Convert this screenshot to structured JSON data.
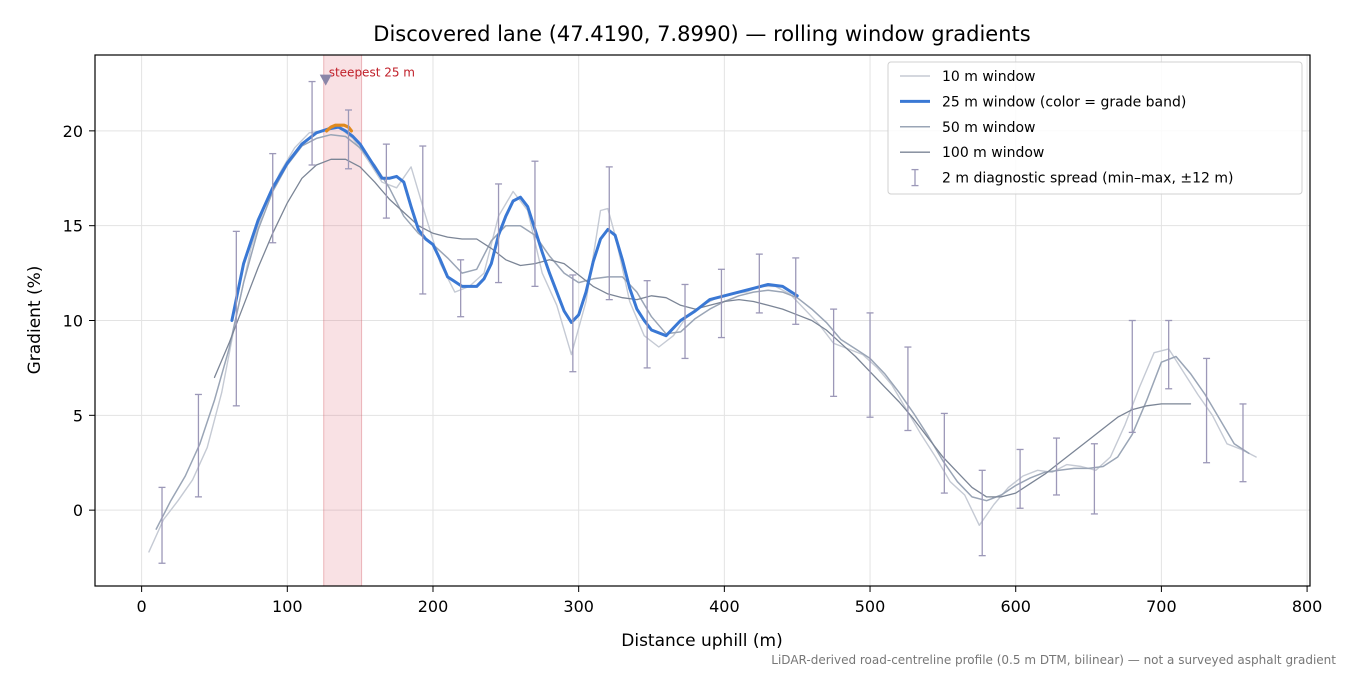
{
  "chart_data": {
    "type": "line",
    "title": "Discovered lane (47.4190, 7.8990) — rolling window gradients",
    "xlabel": "Distance uphill (m)",
    "ylabel": "Gradient (%)",
    "xlim": [
      -32,
      802
    ],
    "ylim": [
      -4,
      24
    ],
    "x_ticks": [
      0,
      100,
      200,
      300,
      400,
      500,
      600,
      700,
      800
    ],
    "y_ticks": [
      0,
      5,
      10,
      15,
      20
    ],
    "grid": true,
    "legend_position": "top-right",
    "annotation": "steepest 25 m",
    "highlight_band": [
      125,
      151
    ],
    "footnote": "LiDAR-derived road-centreline profile (0.5 m DTM, bilinear) — not a surveyed asphalt gradient",
    "series": [
      {
        "name": "10 m window",
        "color": "#c5cad4",
        "x": [
          5,
          15,
          25,
          35,
          45,
          55,
          65,
          75,
          85,
          95,
          105,
          115,
          125,
          135,
          145,
          155,
          165,
          175,
          185,
          195,
          205,
          215,
          225,
          235,
          245,
          255,
          265,
          275,
          285,
          295,
          305,
          315,
          320,
          325,
          335,
          345,
          355,
          365,
          375,
          385,
          395,
          405,
          415,
          425,
          435,
          445,
          455,
          465,
          475,
          485,
          495,
          505,
          515,
          525,
          535,
          545,
          555,
          565,
          575,
          585,
          595,
          605,
          615,
          625,
          635,
          645,
          655,
          665,
          675,
          685,
          695,
          705,
          715,
          725,
          735,
          745,
          755,
          765
        ],
        "values": [
          -2.2,
          -0.5,
          0.5,
          1.6,
          3.3,
          6.2,
          10.2,
          13.8,
          16.1,
          17.8,
          19.1,
          19.9,
          20.0,
          20.2,
          19.6,
          18.5,
          17.3,
          17.0,
          18.1,
          15.5,
          13.0,
          11.5,
          11.8,
          12.5,
          15.5,
          16.8,
          15.8,
          12.5,
          10.8,
          8.2,
          11.0,
          15.8,
          15.9,
          14.5,
          11.0,
          9.2,
          8.6,
          9.2,
          10.3,
          10.8,
          11.2,
          11.4,
          11.5,
          11.8,
          11.8,
          11.4,
          10.6,
          9.8,
          8.8,
          8.5,
          8.2,
          7.5,
          6.6,
          5.3,
          4.0,
          2.8,
          1.5,
          0.8,
          -0.8,
          0.3,
          1.2,
          1.8,
          2.1,
          2.0,
          2.4,
          2.3,
          2.1,
          2.8,
          4.5,
          6.5,
          8.3,
          8.5,
          7.3,
          6.1,
          5.0,
          3.5,
          3.2,
          2.8
        ]
      },
      {
        "name": "25 m window (color = grade band)",
        "color": "#3a78d4",
        "x": [
          62,
          70,
          80,
          90,
          100,
          110,
          120,
          128,
          135,
          140,
          145,
          150,
          155,
          160,
          165,
          170,
          175,
          180,
          185,
          190,
          195,
          200,
          205,
          210,
          220,
          230,
          235,
          240,
          245,
          250,
          255,
          260,
          265,
          270,
          275,
          280,
          285,
          290,
          295,
          300,
          305,
          310,
          315,
          320,
          325,
          330,
          335,
          340,
          345,
          350,
          360,
          370,
          380,
          390,
          400,
          410,
          420,
          430,
          440,
          450
        ],
        "values": [
          10.0,
          13.0,
          15.3,
          17.0,
          18.3,
          19.3,
          19.9,
          20.1,
          20.2,
          20.0,
          19.7,
          19.3,
          18.7,
          18.1,
          17.5,
          17.5,
          17.6,
          17.3,
          16.0,
          14.8,
          14.3,
          14.0,
          13.2,
          12.3,
          11.8,
          11.8,
          12.2,
          13.0,
          14.5,
          15.5,
          16.3,
          16.5,
          16.0,
          14.8,
          13.6,
          12.5,
          11.5,
          10.5,
          9.9,
          10.3,
          11.5,
          13.1,
          14.3,
          14.8,
          14.5,
          13.2,
          11.7,
          10.6,
          10.0,
          9.5,
          9.2,
          10.0,
          10.5,
          11.1,
          11.3,
          11.5,
          11.7,
          11.9,
          11.8,
          11.3
        ]
      },
      {
        "name": "25 m window steepest segment",
        "color": "#e08a1e",
        "x": [
          127,
          130,
          133,
          136,
          139,
          142,
          144
        ],
        "values": [
          20.0,
          20.2,
          20.3,
          20.3,
          20.3,
          20.2,
          20.0
        ]
      },
      {
        "name": "50 m window",
        "color": "#9aa5b6",
        "x": [
          10,
          20,
          30,
          40,
          50,
          60,
          70,
          80,
          90,
          100,
          110,
          120,
          130,
          140,
          150,
          160,
          170,
          180,
          190,
          200,
          210,
          220,
          230,
          240,
          250,
          260,
          270,
          280,
          290,
          300,
          310,
          320,
          330,
          340,
          350,
          360,
          370,
          380,
          390,
          400,
          410,
          420,
          430,
          440,
          450,
          460,
          470,
          480,
          490,
          500,
          510,
          520,
          530,
          540,
          550,
          560,
          570,
          580,
          590,
          600,
          610,
          620,
          630,
          640,
          650,
          660,
          670,
          680,
          690,
          700,
          710,
          720,
          730,
          740,
          750,
          760
        ],
        "values": [
          -1.0,
          0.5,
          1.8,
          3.5,
          5.8,
          8.5,
          12.0,
          14.8,
          16.8,
          18.2,
          19.2,
          19.6,
          19.8,
          19.7,
          19.1,
          18.2,
          17.0,
          15.5,
          14.6,
          14.0,
          13.3,
          12.5,
          12.7,
          14.2,
          15.0,
          15.0,
          14.5,
          13.4,
          12.5,
          12.0,
          12.2,
          12.3,
          12.3,
          11.5,
          10.2,
          9.3,
          9.4,
          10.1,
          10.6,
          11.0,
          11.3,
          11.5,
          11.6,
          11.5,
          11.2,
          10.6,
          9.9,
          9.0,
          8.5,
          8.0,
          7.2,
          6.2,
          5.1,
          3.9,
          2.6,
          1.5,
          0.7,
          0.5,
          0.8,
          1.3,
          1.7,
          2.0,
          2.1,
          2.2,
          2.2,
          2.3,
          2.8,
          4.0,
          5.8,
          7.8,
          8.1,
          7.2,
          6.1,
          4.8,
          3.5,
          3.0
        ]
      },
      {
        "name": "100 m window",
        "color": "#7b8596",
        "x": [
          50,
          60,
          70,
          80,
          90,
          100,
          110,
          120,
          130,
          140,
          150,
          160,
          170,
          180,
          190,
          200,
          210,
          220,
          230,
          240,
          250,
          260,
          270,
          280,
          290,
          300,
          310,
          320,
          330,
          340,
          350,
          360,
          370,
          380,
          390,
          400,
          410,
          420,
          430,
          440,
          450,
          460,
          470,
          480,
          490,
          500,
          510,
          520,
          530,
          540,
          550,
          560,
          570,
          580,
          590,
          600,
          610,
          620,
          630,
          640,
          650,
          660,
          670,
          680,
          690,
          700,
          710,
          720
        ],
        "values": [
          7.0,
          8.8,
          10.8,
          12.8,
          14.6,
          16.2,
          17.5,
          18.2,
          18.5,
          18.5,
          18.1,
          17.3,
          16.4,
          15.7,
          15.0,
          14.6,
          14.4,
          14.3,
          14.3,
          13.8,
          13.2,
          12.9,
          13.0,
          13.2,
          13.0,
          12.4,
          11.8,
          11.4,
          11.2,
          11.1,
          11.3,
          11.2,
          10.8,
          10.6,
          10.8,
          11.0,
          11.1,
          11.0,
          10.8,
          10.6,
          10.3,
          10.0,
          9.5,
          8.8,
          8.1,
          7.3,
          6.5,
          5.7,
          4.8,
          3.8,
          2.8,
          2.0,
          1.2,
          0.7,
          0.7,
          0.9,
          1.4,
          1.9,
          2.5,
          3.1,
          3.7,
          4.3,
          4.9,
          5.3,
          5.5,
          5.6,
          5.6,
          5.6
        ]
      }
    ],
    "error_bars": {
      "name": "2 m diagnostic spread (min–max, ±12 m)",
      "color": "#9c98b8",
      "points": [
        {
          "x": 14,
          "low": -2.8,
          "high": 1.2
        },
        {
          "x": 39,
          "low": 0.7,
          "high": 6.1
        },
        {
          "x": 65,
          "low": 5.5,
          "high": 14.7
        },
        {
          "x": 90,
          "low": 14.1,
          "high": 18.8
        },
        {
          "x": 117,
          "low": 18.2,
          "high": 22.6
        },
        {
          "x": 142,
          "low": 18.0,
          "high": 21.1
        },
        {
          "x": 168,
          "low": 15.4,
          "high": 19.3
        },
        {
          "x": 193,
          "low": 11.4,
          "high": 19.2
        },
        {
          "x": 219,
          "low": 10.2,
          "high": 13.2
        },
        {
          "x": 245,
          "low": 12.0,
          "high": 17.2
        },
        {
          "x": 270,
          "low": 11.8,
          "high": 18.4
        },
        {
          "x": 296,
          "low": 7.3,
          "high": 12.4
        },
        {
          "x": 321,
          "low": 11.1,
          "high": 18.1
        },
        {
          "x": 347,
          "low": 7.5,
          "high": 12.1
        },
        {
          "x": 373,
          "low": 8.0,
          "high": 11.9
        },
        {
          "x": 398,
          "low": 9.1,
          "high": 12.7
        },
        {
          "x": 424,
          "low": 10.4,
          "high": 13.5
        },
        {
          "x": 449,
          "low": 9.8,
          "high": 13.3
        },
        {
          "x": 475,
          "low": 6.0,
          "high": 10.6
        },
        {
          "x": 500,
          "low": 4.9,
          "high": 10.4
        },
        {
          "x": 526,
          "low": 4.2,
          "high": 8.6
        },
        {
          "x": 551,
          "low": 0.9,
          "high": 5.1
        },
        {
          "x": 577,
          "low": -2.4,
          "high": 2.1
        },
        {
          "x": 603,
          "low": 0.1,
          "high": 3.2
        },
        {
          "x": 628,
          "low": 0.8,
          "high": 3.8
        },
        {
          "x": 654,
          "low": -0.2,
          "high": 3.5
        },
        {
          "x": 680,
          "low": 4.1,
          "high": 10.0
        },
        {
          "x": 705,
          "low": 6.4,
          "high": 10.0
        },
        {
          "x": 731,
          "low": 2.5,
          "high": 8.0
        },
        {
          "x": 756,
          "low": 1.5,
          "high": 5.6
        }
      ]
    }
  }
}
